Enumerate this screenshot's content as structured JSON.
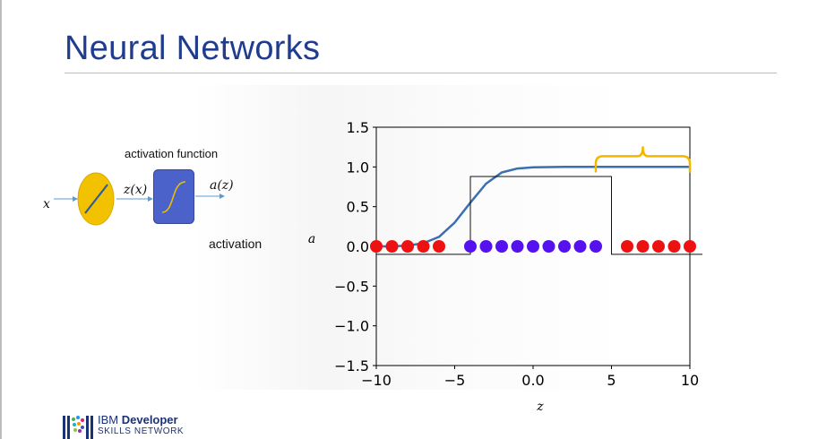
{
  "slide": {
    "title": "Neural Networks"
  },
  "diagram": {
    "input_label": "x",
    "z_label": "z(x)",
    "a_label": "a(z)",
    "activation_function_label": "activation function",
    "activation_label": "activation",
    "colors": {
      "neuron_fill": "#f2c200",
      "neuron_line": "#2f5d9b",
      "box_fill": "#4a62c9",
      "curve": "#e8c000",
      "arrow": "#5b9bd5"
    }
  },
  "footer": {
    "brand_prefix": "IBM ",
    "brand_bold": "Developer",
    "brand_line2": "SKILLS NETWORK"
  },
  "chart_data": {
    "type": "line",
    "xlabel": "z",
    "ylabel": "a",
    "xlim": [
      -10,
      10
    ],
    "ylim": [
      -1.5,
      1.5
    ],
    "xticks": [
      -10,
      -5,
      0,
      5,
      10
    ],
    "yticks": [
      1.5,
      1.0,
      0.5,
      0.0,
      -0.5,
      -1.0,
      -1.5
    ],
    "grid": false,
    "series": [
      {
        "kind": "line",
        "color": "#3a6fb0",
        "points": [
          [
            -10,
            0.0
          ],
          [
            -9,
            0.0
          ],
          [
            -8,
            0.01
          ],
          [
            -7,
            0.04
          ],
          [
            -6,
            0.12
          ],
          [
            -5,
            0.3
          ],
          [
            -4,
            0.55
          ],
          [
            -3,
            0.79
          ],
          [
            -2,
            0.93
          ],
          [
            -1,
            0.98
          ],
          [
            0,
            0.995
          ],
          [
            2,
            1.0
          ],
          [
            4,
            1.0
          ],
          [
            10,
            1.0
          ]
        ]
      },
      {
        "kind": "step",
        "color": "#111111",
        "points": [
          [
            -10,
            -0.1
          ],
          [
            -4,
            -0.1
          ],
          [
            -4,
            0.88
          ],
          [
            5,
            0.88
          ],
          [
            5,
            -0.1
          ],
          [
            10.8,
            -0.1
          ]
        ]
      },
      {
        "kind": "scatter",
        "color": "#ee1111",
        "x": [
          -10,
          -9,
          -8,
          -7,
          -6,
          6,
          7,
          8,
          9,
          10
        ],
        "y": [
          0,
          0,
          0,
          0,
          0,
          0,
          0,
          0,
          0,
          0
        ]
      },
      {
        "kind": "scatter",
        "color": "#5511ee",
        "x": [
          -4,
          -3,
          -2,
          -1,
          0,
          1,
          2,
          3,
          4
        ],
        "y": [
          0,
          0,
          0,
          0,
          0,
          0,
          0,
          0,
          0
        ]
      }
    ],
    "annotation": {
      "kind": "brace",
      "color": "#f2b800",
      "x_from": 4,
      "x_to": 10,
      "y": 1.0
    }
  }
}
